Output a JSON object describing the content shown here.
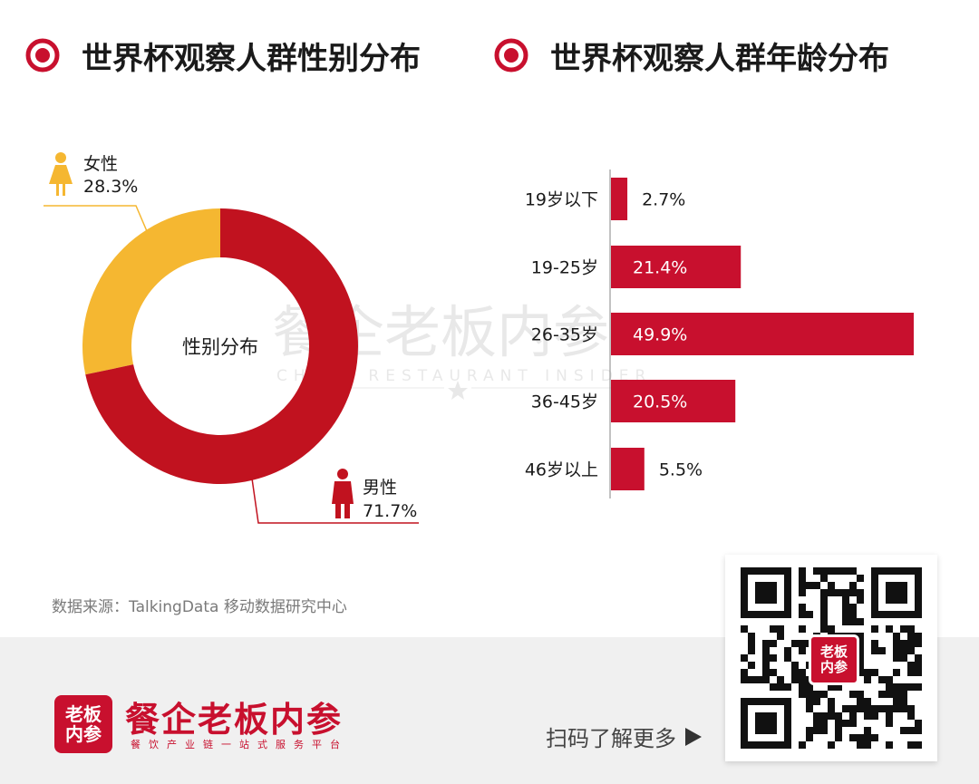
{
  "gender_section": {
    "title": "世界杯观察人群性别分布",
    "center_label": "性别分布"
  },
  "age_section": {
    "title": "世界杯观察人群年龄分布"
  },
  "chart_data": [
    {
      "type": "pie",
      "donut": true,
      "title": "世界杯观察人群性别分布",
      "center_label": "性别分布",
      "categories": [
        "女性",
        "男性"
      ],
      "values": [
        28.3,
        71.7
      ],
      "value_labels": [
        "28.3%",
        "71.7%"
      ],
      "colors": [
        "#f5b731",
        "#c1121f"
      ],
      "icons": [
        "female-icon",
        "male-icon"
      ]
    },
    {
      "type": "bar",
      "orientation": "horizontal",
      "title": "世界杯观察人群年龄分布",
      "categories": [
        "19岁以下",
        "19-25岁",
        "26-35岁",
        "36-45岁",
        "46岁以上"
      ],
      "values": [
        2.7,
        21.4,
        49.9,
        20.5,
        5.5
      ],
      "value_labels": [
        "2.7%",
        "21.4%",
        "49.9%",
        "20.5%",
        "5.5%"
      ],
      "color": "#c8102e"
    }
  ],
  "source": "数据来源：TalkingData 移动数据研究中心",
  "watermark": {
    "text": "餐企老板内参",
    "subtitle": "CHINA RESTAURANT INSIDER"
  },
  "footer": {
    "logo_line1": "老板",
    "logo_line2": "内参",
    "brand_name": "餐企老板内参",
    "slogan": "餐饮产业链一站式服务平台",
    "scan_text": "扫码了解更多",
    "qr_logo_line1": "老板",
    "qr_logo_line2": "内参"
  },
  "colors": {
    "accent_red": "#c8102e",
    "accent_yellow": "#f5b731",
    "footer_bg": "#f0f0f0"
  }
}
